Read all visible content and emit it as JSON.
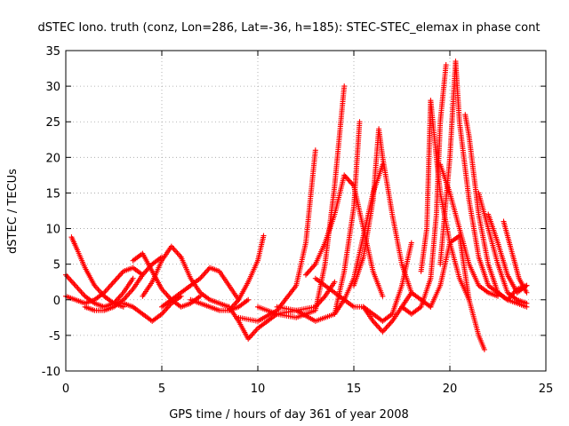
{
  "chart_data": {
    "type": "scatter",
    "title": "dSTEC Iono. truth (conz, Lon=286, Lat=-36, h=185): STEC-STEC_elemax in phase cont",
    "xlabel": "GPS time / hours of day 361 of year 2008",
    "ylabel": "dSTEC  / TECUs",
    "xlim": [
      0,
      25
    ],
    "ylim": [
      -10,
      35
    ],
    "xticks": [
      "0",
      "5",
      "10",
      "15",
      "20",
      "25"
    ],
    "yticks": [
      "-10",
      "-5",
      "0",
      "5",
      "10",
      "15",
      "20",
      "25",
      "30",
      "35"
    ],
    "grid": true,
    "marker": "+",
    "color": "#ff0000",
    "series": [
      {
        "x": [
          0.0,
          0.5,
          1.0,
          1.5,
          2.0,
          2.5,
          3.0,
          3.5
        ],
        "y": [
          3.5,
          2.0,
          0.5,
          -0.5,
          -1.0,
          -0.5,
          1.0,
          3.0
        ]
      },
      {
        "x": [
          0.3,
          0.6,
          1.0,
          1.5,
          2.0,
          2.5,
          3.0
        ],
        "y": [
          8.8,
          7.0,
          4.5,
          2.0,
          0.5,
          -0.5,
          -1.0
        ]
      },
      {
        "x": [
          0.0,
          0.5,
          1.0,
          1.5,
          2.0,
          2.5,
          3.0,
          3.5,
          4.0
        ],
        "y": [
          0.5,
          0.0,
          -0.5,
          0.0,
          1.0,
          2.5,
          4.0,
          4.5,
          3.5
        ]
      },
      {
        "x": [
          1.0,
          1.5,
          2.0,
          2.5,
          3.0,
          3.5,
          4.0,
          4.5,
          5.0
        ],
        "y": [
          -1.0,
          -1.5,
          -1.5,
          -1.0,
          0.0,
          1.5,
          3.5,
          5.0,
          6.0
        ]
      },
      {
        "x": [
          3.5,
          4.0,
          4.5,
          5.0,
          5.5,
          6.0,
          6.5,
          7.0
        ],
        "y": [
          5.5,
          6.5,
          4.0,
          1.5,
          0.0,
          -1.0,
          -0.5,
          0.5
        ]
      },
      {
        "x": [
          4.0,
          4.5,
          5.0,
          5.5,
          6.0
        ],
        "y": [
          0.5,
          2.5,
          5.5,
          7.5,
          6.0
        ]
      },
      {
        "x": [
          3.0,
          3.5,
          4.0,
          4.5,
          5.0,
          5.5,
          6.0
        ],
        "y": [
          -0.5,
          -1.0,
          -2.0,
          -3.0,
          -2.0,
          -0.5,
          0.5
        ]
      },
      {
        "x": [
          5.0,
          5.5,
          6.0,
          6.5,
          7.0,
          7.5,
          8.0,
          8.5,
          9.0
        ],
        "y": [
          -1.0,
          0.0,
          1.0,
          2.0,
          3.0,
          4.5,
          4.0,
          2.0,
          0.0
        ]
      },
      {
        "x": [
          6.0,
          6.5,
          7.0,
          7.5,
          8.0,
          8.5
        ],
        "y": [
          6.0,
          3.0,
          1.0,
          0.0,
          -0.5,
          -1.0
        ]
      },
      {
        "x": [
          6.5,
          7.0,
          7.5,
          8.0,
          8.5,
          9.0,
          9.5
        ],
        "y": [
          0.0,
          -0.5,
          -1.0,
          -1.5,
          -1.5,
          -1.0,
          0.0
        ]
      },
      {
        "x": [
          8.5,
          9.0,
          9.5,
          10.0,
          10.5,
          11.0,
          12.0,
          13.0,
          13.5,
          14.0
        ],
        "y": [
          -1.0,
          -3.0,
          -5.5,
          -4.0,
          -3.0,
          -2.0,
          -1.5,
          -1.0,
          0.5,
          2.5
        ]
      },
      {
        "x": [
          8.5,
          9.0,
          9.5,
          10.0,
          10.3
        ],
        "y": [
          -1.5,
          0.0,
          2.5,
          5.5,
          9.0
        ]
      },
      {
        "x": [
          9.0,
          10.0,
          11.0,
          12.0,
          12.5,
          13.0
        ],
        "y": [
          -2.5,
          -3.0,
          -1.5,
          2.0,
          8.0,
          21.0
        ]
      },
      {
        "x": [
          10.0,
          11.0,
          12.0,
          13.0,
          13.5,
          14.0,
          14.5
        ],
        "y": [
          -1.0,
          -2.0,
          -2.5,
          -1.5,
          5.0,
          16.0,
          30.0
        ]
      },
      {
        "x": [
          11.0,
          12.0,
          13.0,
          14.0,
          14.5,
          15.0,
          15.3
        ],
        "y": [
          -1.0,
          -1.5,
          -3.0,
          -2.0,
          4.0,
          13.0,
          25.0
        ]
      },
      {
        "x": [
          12.5,
          13.0,
          13.5,
          14.0,
          14.5,
          15.0,
          15.5,
          16.0,
          16.5
        ],
        "y": [
          3.5,
          5.0,
          8.0,
          12.0,
          17.5,
          16.0,
          10.0,
          4.0,
          0.5
        ]
      },
      {
        "x": [
          14.0,
          14.5,
          15.0,
          15.5,
          16.0,
          16.5
        ],
        "y": [
          -2.0,
          0.0,
          3.0,
          9.0,
          15.0,
          19.0
        ]
      },
      {
        "x": [
          13.0,
          14.0,
          15.0,
          15.5,
          16.0,
          16.5,
          17.0,
          17.5,
          18.0
        ],
        "y": [
          3.0,
          1.0,
          -1.0,
          -1.0,
          -2.0,
          -3.0,
          -2.0,
          2.0,
          8.0
        ]
      },
      {
        "x": [
          15.0,
          15.5,
          16.0,
          16.3,
          16.5,
          17.0,
          17.5,
          18.0
        ],
        "y": [
          2.0,
          6.0,
          14.0,
          24.0,
          20.0,
          12.0,
          5.0,
          1.0
        ]
      },
      {
        "x": [
          15.5,
          16.0,
          16.5,
          17.0,
          17.5,
          18.0,
          18.5,
          19.0
        ],
        "y": [
          -1.0,
          -3.0,
          -4.5,
          -3.0,
          -1.0,
          1.0,
          0.0,
          -1.0
        ]
      },
      {
        "x": [
          17.5,
          18.0,
          18.5,
          19.0,
          19.3,
          19.5,
          19.8
        ],
        "y": [
          -1.0,
          -2.0,
          -1.0,
          3.0,
          12.0,
          25.0,
          33.0
        ]
      },
      {
        "x": [
          18.5,
          18.8,
          19.0,
          19.3,
          19.5,
          20.0,
          20.5,
          21.0
        ],
        "y": [
          4.0,
          10.0,
          28.0,
          20.0,
          15.0,
          8.0,
          3.0,
          0.0
        ]
      },
      {
        "x": [
          19.0,
          19.5,
          20.0,
          20.5,
          21.0,
          21.5,
          21.8
        ],
        "y": [
          -1.0,
          2.0,
          8.0,
          9.0,
          0.0,
          -5.0,
          -7.0
        ]
      },
      {
        "x": [
          19.5,
          20.0,
          20.3,
          20.5,
          21.0,
          21.5,
          22.0,
          23.0,
          24.0
        ],
        "y": [
          5.0,
          20.0,
          33.5,
          25.0,
          14.0,
          6.0,
          2.0,
          0.0,
          -1.0
        ]
      },
      {
        "x": [
          19.5,
          20.0,
          20.5,
          21.0,
          21.5,
          22.0,
          22.5
        ],
        "y": [
          19.0,
          15.0,
          10.0,
          5.0,
          2.0,
          1.0,
          0.5
        ]
      },
      {
        "x": [
          20.8,
          21.0,
          21.5,
          22.0,
          22.5,
          23.0,
          23.5,
          24.0
        ],
        "y": [
          26.0,
          23.0,
          12.0,
          5.0,
          1.0,
          0.0,
          1.5,
          2.0
        ]
      },
      {
        "x": [
          21.5,
          22.0,
          22.5,
          23.0,
          23.5,
          24.0
        ],
        "y": [
          15.0,
          10.0,
          5.0,
          1.0,
          0.0,
          -0.5
        ]
      },
      {
        "x": [
          22.0,
          22.5,
          23.0,
          23.5,
          24.0
        ],
        "y": [
          12.0,
          8.0,
          3.5,
          1.0,
          2.0
        ]
      },
      {
        "x": [
          22.8,
          23.2,
          23.6,
          24.0
        ],
        "y": [
          11.0,
          7.0,
          3.0,
          1.0
        ]
      }
    ]
  }
}
